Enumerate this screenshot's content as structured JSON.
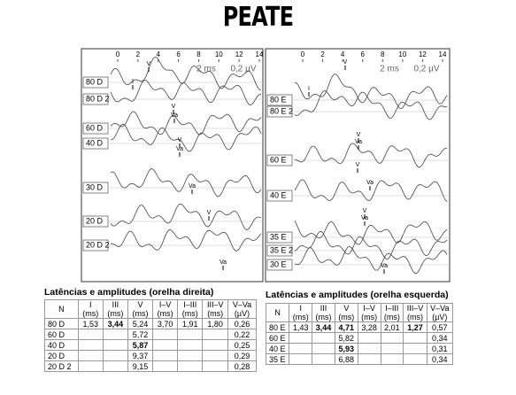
{
  "title": "PEATE",
  "panels": [
    {
      "axis_ticks": [
        "0",
        "2",
        "4",
        "6",
        "8",
        "10",
        "12",
        "14"
      ],
      "scale": [
        "2 ms",
        "0,2 µV"
      ],
      "traces": [
        "80 D",
        "80 D 2",
        "60 D",
        "40 D",
        "30 D",
        "20 D",
        "20 D 2"
      ],
      "peaks": [
        "I",
        "V",
        "V",
        "Va",
        "V",
        "Va",
        "Va",
        "V",
        "Va"
      ]
    },
    {
      "axis_ticks": [
        "0",
        "2",
        "4",
        "6",
        "8",
        "10",
        "12",
        "14"
      ],
      "scale": [
        "2 ms",
        "0,2 µV"
      ],
      "traces": [
        "80 E",
        "80 E 2",
        "60 E",
        "40 E",
        "35 E",
        "35 E 2",
        "30 E"
      ],
      "peaks": [
        "I",
        "V",
        "V",
        "Va",
        "V",
        "Va",
        "V",
        "Va",
        "Va"
      ]
    }
  ],
  "tables": [
    {
      "caption": "Latências e amplitudes (orelha direita)",
      "header": [
        [
          "N"
        ],
        [
          "I",
          "(ms)"
        ],
        [
          "III",
          "(ms)"
        ],
        [
          "V",
          "(ms)"
        ],
        [
          "I–V",
          "(ms)"
        ],
        [
          "I–III",
          "(ms)"
        ],
        [
          "III–V",
          "(ms)"
        ],
        [
          "V–Va",
          "(µV)"
        ]
      ],
      "rows": [
        [
          "80 D",
          "1,53",
          "3,44",
          "5,24",
          "3,70",
          "1,91",
          "1,80",
          "0,26"
        ],
        [
          "60 D",
          null,
          null,
          "5,72",
          null,
          null,
          null,
          "0,22"
        ],
        [
          "40 D",
          null,
          null,
          "5,87",
          null,
          null,
          null,
          "0,25"
        ],
        [
          "20 D",
          null,
          null,
          "9,37",
          null,
          null,
          null,
          "0,29"
        ],
        [
          "20 D 2",
          null,
          null,
          "9,15",
          null,
          null,
          null,
          "0,28"
        ]
      ]
    },
    {
      "caption": "Latências e amplitudes (orelha esquerda)",
      "header": [
        [
          "N"
        ],
        [
          "I",
          "(ms)"
        ],
        [
          "III",
          "(ms)"
        ],
        [
          "V",
          "(ms)"
        ],
        [
          "I–V",
          "(ms)"
        ],
        [
          "I–III",
          "(ms)"
        ],
        [
          "III–V",
          "(ms)"
        ],
        [
          "V–Va",
          "(µV)"
        ]
      ],
      "rows": [
        [
          "80 E",
          "1,43",
          "3,44",
          "4,71",
          "3,28",
          "2,01",
          "1,27",
          "0,57"
        ],
        [
          "60 E",
          null,
          null,
          "5,82",
          null,
          null,
          null,
          "0,34"
        ],
        [
          "40 E",
          null,
          null,
          "5,93",
          null,
          null,
          null,
          "0,31"
        ],
        [
          "35 E",
          null,
          null,
          "6,88",
          null,
          null,
          null,
          "0,34"
        ]
      ]
    }
  ]
}
